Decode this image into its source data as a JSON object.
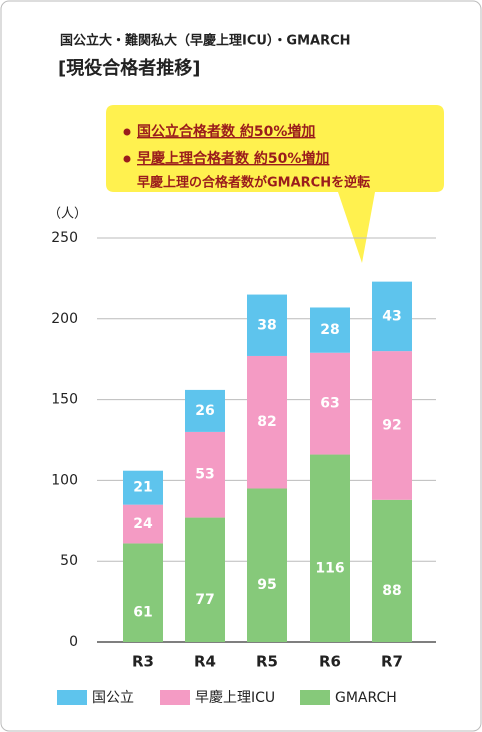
{
  "chart_data": {
    "type": "stacked_bar",
    "title": "国公立大・難関私大（早慶上理ICU）・GMARCH",
    "subtitle": "[現役合格者推移]",
    "y_label": "（人）",
    "annotations": [
      "国公立合格者数 約50%増加",
      "早慶上理合格者数 約50%増加",
      "早慶上理の合格者数がGMARCHを逆転"
    ],
    "categories": [
      "R3",
      "R4",
      "R5",
      "R6",
      "R7"
    ],
    "series": [
      {
        "name": "GMARCH",
        "color": "#86c97a",
        "values": [
          61,
          77,
          95,
          116,
          88
        ]
      },
      {
        "name": "早慶上理ICU",
        "color": "#f49bc4",
        "values": [
          24,
          53,
          82,
          63,
          92
        ]
      },
      {
        "name": "国公立",
        "color": "#5ec4ed",
        "values": [
          21,
          26,
          38,
          28,
          43
        ]
      }
    ],
    "ylim": [
      0,
      250
    ],
    "yticks": [
      0,
      50,
      100,
      150,
      200,
      250
    ],
    "grid": true
  }
}
